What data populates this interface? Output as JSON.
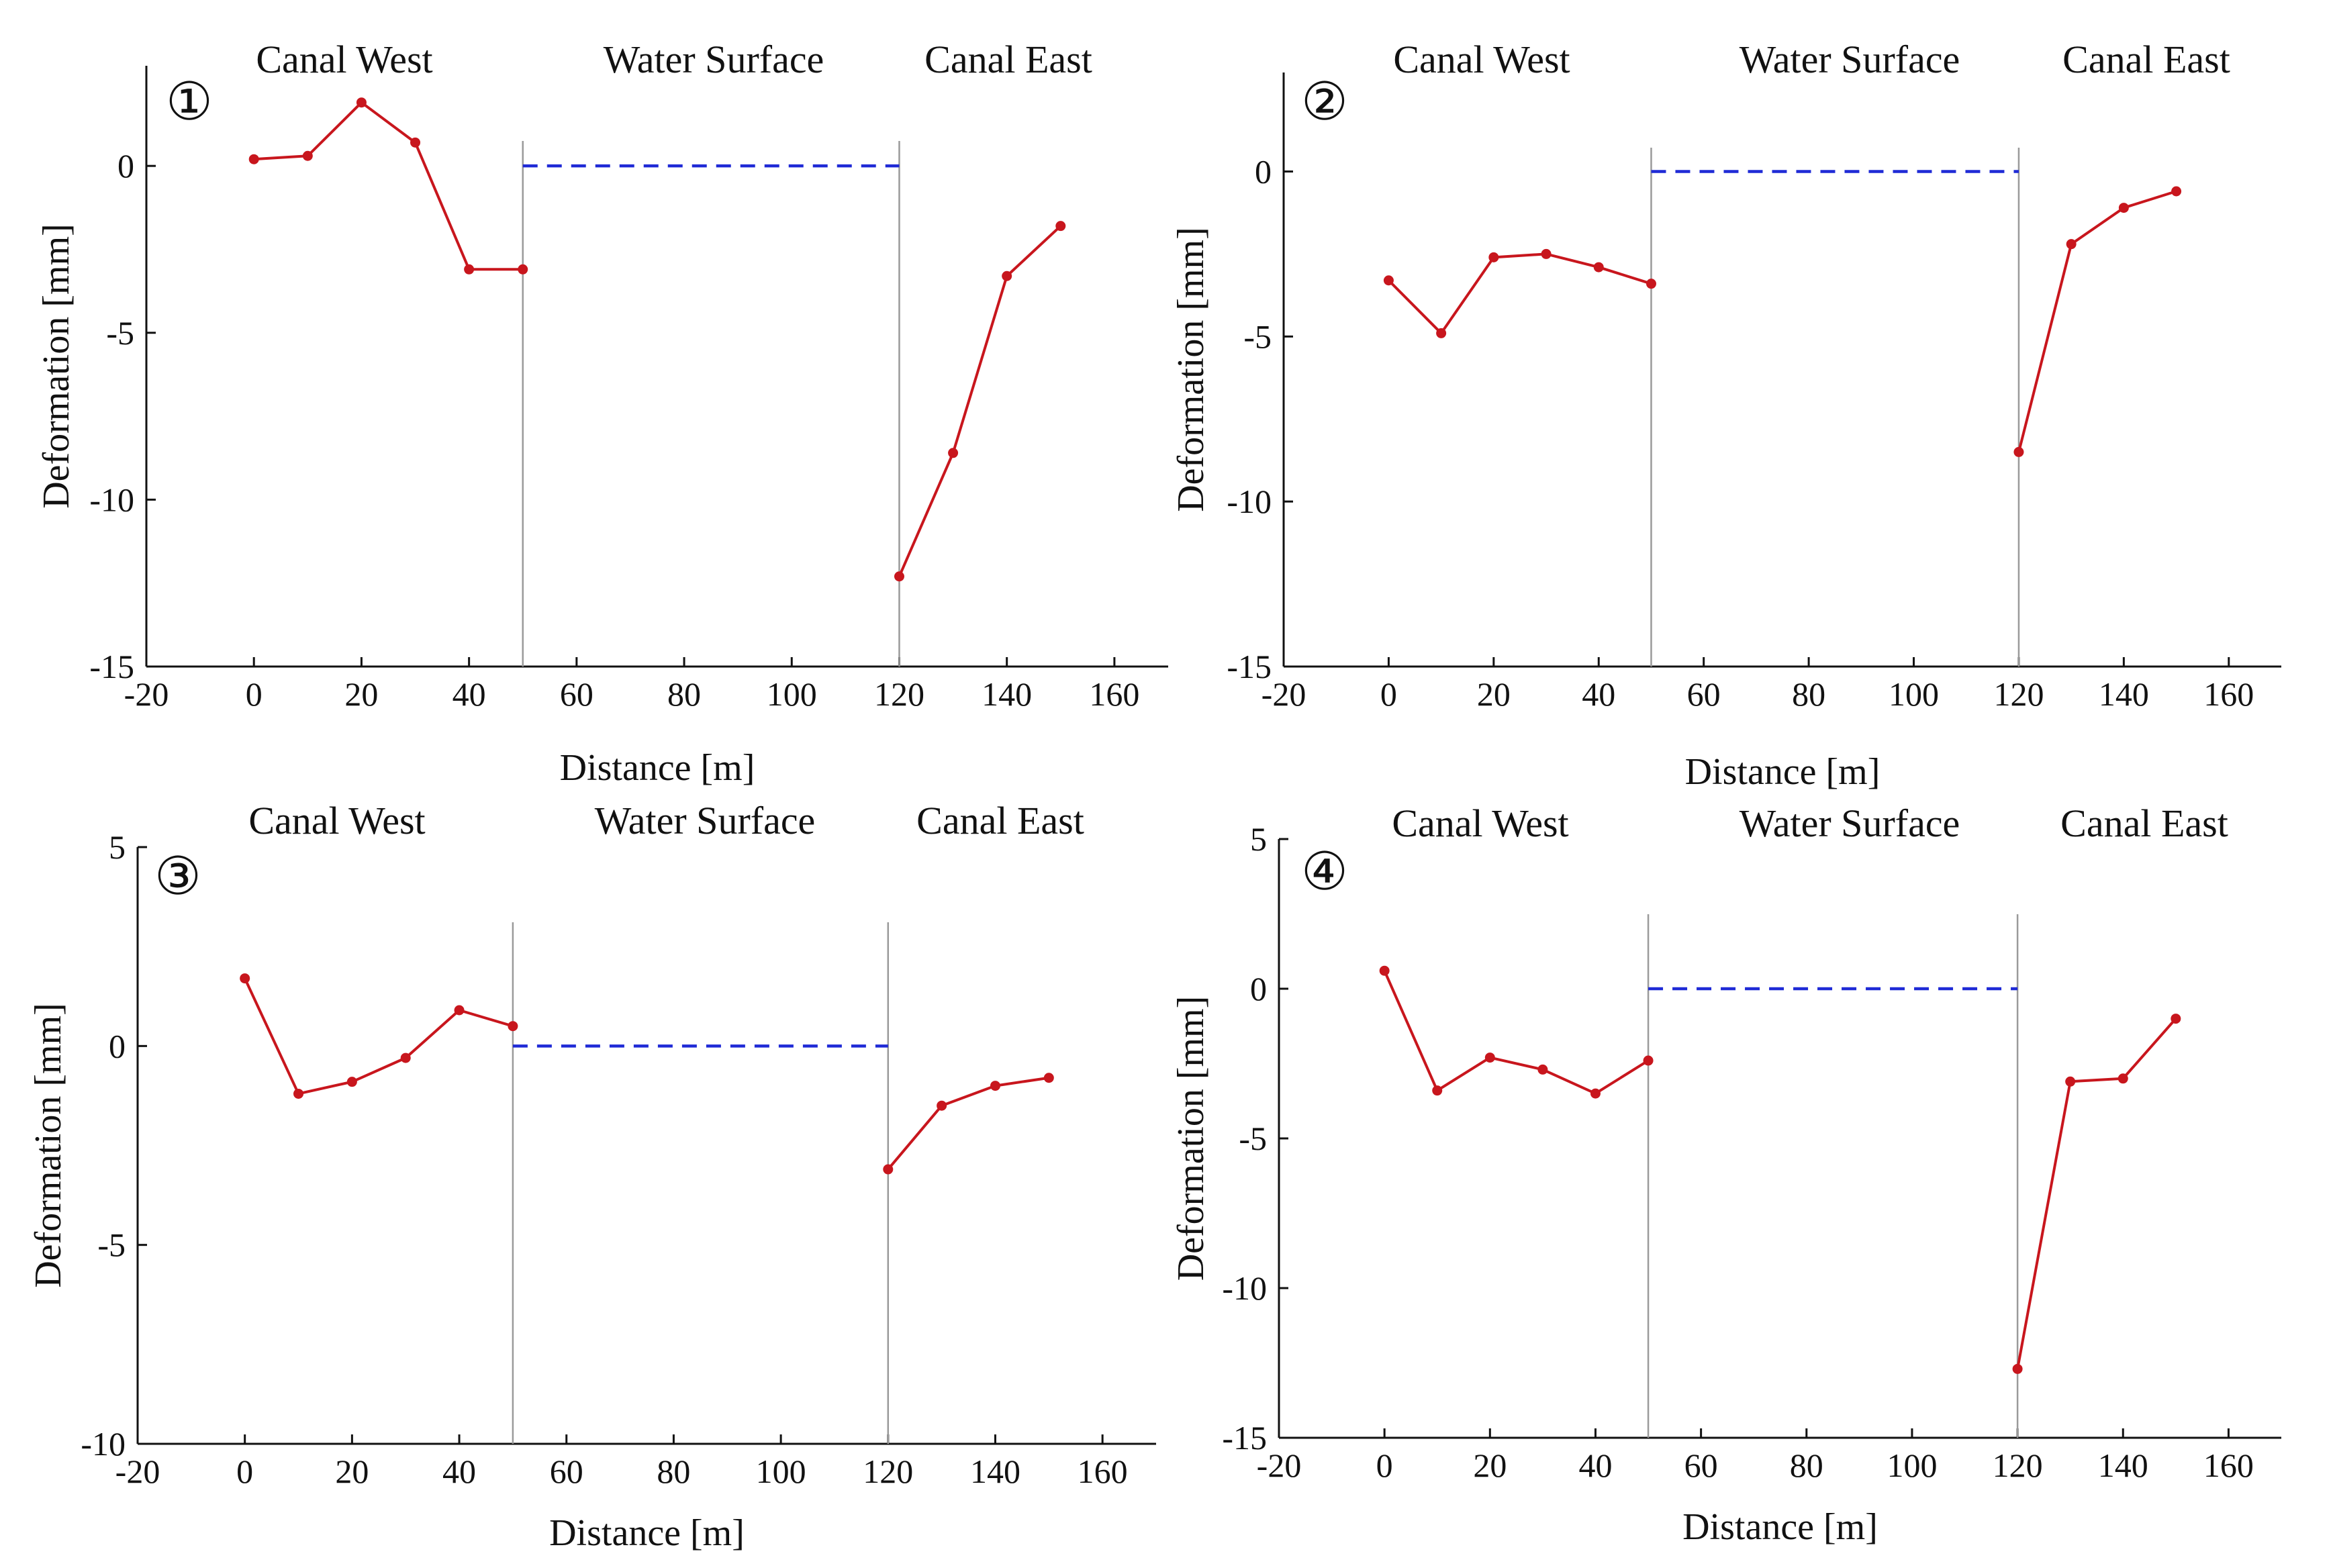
{
  "figure": {
    "layout": "2x2 grid of deformation profiles"
  },
  "colors": {
    "series": "#c8161d",
    "water": "#1f2ad6",
    "axis": "#111111",
    "divider": "#9a9a9a"
  },
  "chart_data": [
    {
      "type": "line",
      "panel_label": "①",
      "regions": [
        "Canal West",
        "Water Surface",
        "Canal East"
      ],
      "xlabel": "Distance [m]",
      "ylabel": "Deformation [mm]",
      "xlim": [
        -20,
        170
      ],
      "ylim": [
        -15,
        3
      ],
      "xticks": [
        -20,
        0,
        20,
        40,
        60,
        80,
        100,
        120,
        140,
        160
      ],
      "xtick_labels": [
        "-20",
        "0",
        "20",
        "40",
        "60",
        "80",
        "100",
        "120",
        "140",
        "160"
      ],
      "yticks": [
        -15,
        -10,
        -5,
        0
      ],
      "ytick_labels": [
        "-15",
        "-10",
        "-5",
        "0"
      ],
      "dividers_x": [
        50,
        120
      ],
      "water_level": {
        "x": [
          50,
          120
        ],
        "y": 0
      },
      "series": [
        {
          "name": "West",
          "x": [
            0,
            10,
            20,
            30,
            40,
            50
          ],
          "y": [
            0.2,
            0.3,
            1.9,
            0.7,
            -3.1,
            -3.1
          ]
        },
        {
          "name": "East",
          "x": [
            120,
            130,
            140,
            150
          ],
          "y": [
            -12.3,
            -8.6,
            -3.3,
            -1.8
          ]
        }
      ]
    },
    {
      "type": "line",
      "panel_label": "②",
      "regions": [
        "Canal West",
        "Water Surface",
        "Canal East"
      ],
      "xlabel": "Distance [m]",
      "ylabel": "Deformation [mm]",
      "xlim": [
        -20,
        170
      ],
      "ylim": [
        -15,
        3
      ],
      "xticks": [
        -20,
        0,
        20,
        40,
        60,
        80,
        100,
        120,
        140,
        160
      ],
      "xtick_labels": [
        "-20",
        "0",
        "20",
        "40",
        "60",
        "80",
        "100",
        "120",
        "140",
        "160"
      ],
      "yticks": [
        -15,
        -10,
        -5,
        0
      ],
      "ytick_labels": [
        "-15",
        "-10",
        "-5",
        "0"
      ],
      "dividers_x": [
        50,
        120
      ],
      "water_level": {
        "x": [
          50,
          120
        ],
        "y": 0
      },
      "series": [
        {
          "name": "West",
          "x": [
            0,
            10,
            20,
            30,
            40,
            50
          ],
          "y": [
            -3.3,
            -4.9,
            -2.6,
            -2.5,
            -2.9,
            -3.4
          ]
        },
        {
          "name": "East",
          "x": [
            120,
            130,
            140,
            150
          ],
          "y": [
            -8.5,
            -2.2,
            -1.1,
            -0.6
          ]
        }
      ]
    },
    {
      "type": "line",
      "panel_label": "③",
      "regions": [
        "Canal West",
        "Water Surface",
        "Canal East"
      ],
      "xlabel": "Distance [m]",
      "ylabel": "Deformation [mm]",
      "xlim": [
        -20,
        170
      ],
      "ylim": [
        -10,
        5
      ],
      "xticks": [
        -20,
        0,
        20,
        40,
        60,
        80,
        100,
        120,
        140,
        160
      ],
      "xtick_labels": [
        "-20",
        "0",
        "20",
        "40",
        "60",
        "80",
        "100",
        "120",
        "140",
        "160"
      ],
      "yticks": [
        -10,
        -5,
        0,
        5
      ],
      "ytick_labels": [
        "-10",
        "-5",
        "0",
        "5"
      ],
      "dividers_x": [
        50,
        120
      ],
      "water_level": {
        "x": [
          50,
          120
        ],
        "y": 0
      },
      "series": [
        {
          "name": "West",
          "x": [
            0,
            10,
            20,
            30,
            40,
            50
          ],
          "y": [
            1.7,
            -1.2,
            -0.9,
            -0.3,
            0.9,
            0.5
          ]
        },
        {
          "name": "East",
          "x": [
            120,
            130,
            140,
            150
          ],
          "y": [
            -3.1,
            -1.5,
            -1.0,
            -0.8
          ]
        }
      ]
    },
    {
      "type": "line",
      "panel_label": "④",
      "regions": [
        "Canal West",
        "Water Surface",
        "Canal East"
      ],
      "xlabel": "Distance [m]",
      "ylabel": "Deformation [mm]",
      "xlim": [
        -20,
        170
      ],
      "ylim": [
        -15,
        5
      ],
      "xticks": [
        -20,
        0,
        20,
        40,
        60,
        80,
        100,
        120,
        140,
        160
      ],
      "xtick_labels": [
        "-20",
        "0",
        "20",
        "40",
        "60",
        "80",
        "100",
        "120",
        "140",
        "160"
      ],
      "yticks": [
        -15,
        -10,
        -5,
        0,
        5
      ],
      "ytick_labels": [
        "-15",
        "-10",
        "-5",
        "0",
        "5"
      ],
      "dividers_x": [
        50,
        120
      ],
      "water_level": {
        "x": [
          50,
          120
        ],
        "y": 0
      },
      "series": [
        {
          "name": "West",
          "x": [
            0,
            10,
            20,
            30,
            40,
            50
          ],
          "y": [
            0.6,
            -3.4,
            -2.3,
            -2.7,
            -3.5,
            -2.4
          ]
        },
        {
          "name": "East",
          "x": [
            120,
            130,
            140,
            150
          ],
          "y": [
            -12.7,
            -3.1,
            -3.0,
            -1.0
          ]
        }
      ]
    }
  ]
}
